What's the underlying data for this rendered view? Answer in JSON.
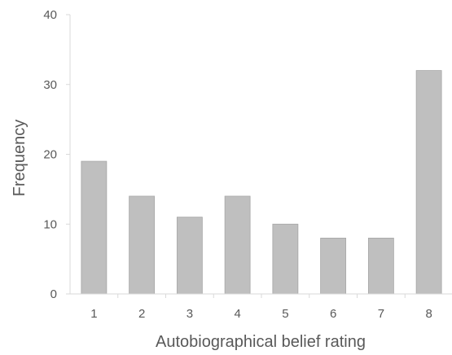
{
  "chart_data": {
    "type": "bar",
    "categories": [
      "1",
      "2",
      "3",
      "4",
      "5",
      "6",
      "7",
      "8"
    ],
    "values": [
      19,
      14,
      11,
      14,
      10,
      8,
      8,
      32
    ],
    "title": "",
    "xlabel": "Autobiographical belief rating",
    "ylabel": "Frequency",
    "ylim": [
      0,
      40
    ],
    "yticks": [
      0,
      10,
      20,
      30,
      40
    ],
    "grid": false,
    "colors": {
      "bar": "#bfbfbf",
      "bar_border": "#a6a6a6",
      "axis": "#d9d9d9",
      "text": "#595959"
    }
  }
}
